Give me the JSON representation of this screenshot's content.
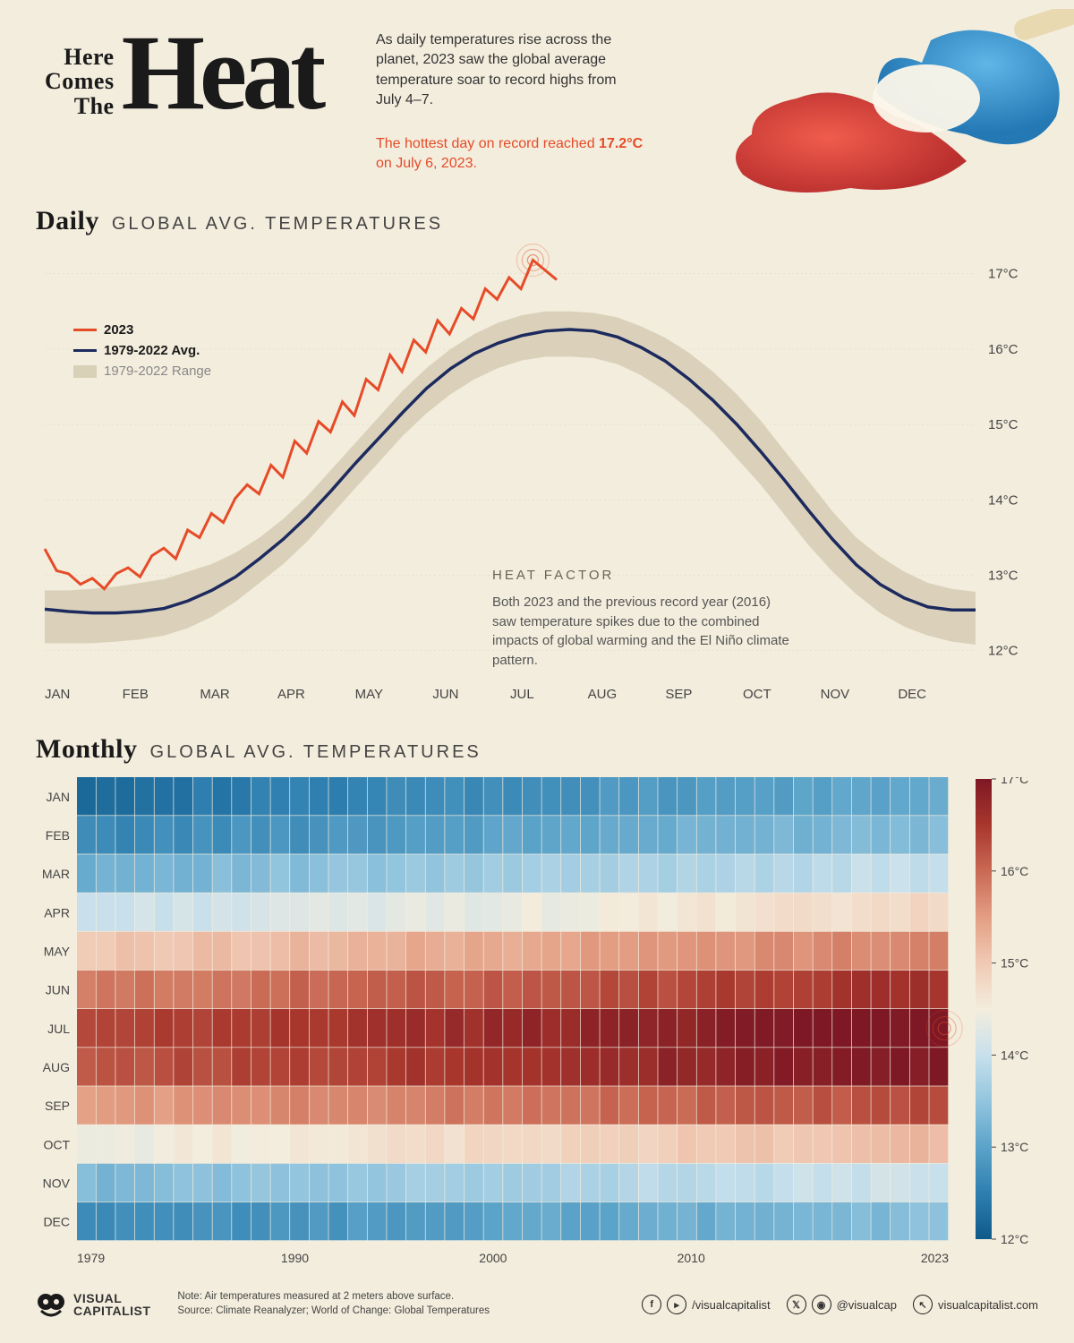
{
  "colors": {
    "bg": "#f3eddd",
    "text": "#1a1a1a",
    "accent_red": "#e64b28",
    "line_2023": "#e64b28",
    "line_avg": "#1c2a5e",
    "range_fill": "#d9d0b8",
    "grid": "#b8b09a",
    "axis_text": "#444444",
    "heat_scale": [
      "#0e5a8a",
      "#2e7fb0",
      "#5ba3c9",
      "#93c5de",
      "#c8e0ec",
      "#f3eddd",
      "#f0c9b4",
      "#e39e83",
      "#c96954",
      "#a8362d",
      "#7d1824"
    ]
  },
  "header": {
    "title_small": "Here\nComes\nThe",
    "title_big": "Heat",
    "intro": "As daily temperatures rise across the planet, 2023 saw the global average temperature soar to record highs from July 4–7.",
    "callout_pre": "The hottest day on record reached ",
    "callout_bold": "17.2°C",
    "callout_post": " on July 6, 2023."
  },
  "daily": {
    "title_bold": "Daily",
    "title_thin": "GLOBAL AVG. TEMPERATURES",
    "legend": {
      "l2023": "2023",
      "lavg": "1979-2022 Avg.",
      "lrange": "1979-2022 Range"
    },
    "annotation": {
      "title": "HEAT FACTOR",
      "body": "Both 2023 and the previous record year (2016) saw temperature spikes due to the combined impacts of global warming and the El Niño climate pattern."
    },
    "x_labels": [
      "JAN",
      "FEB",
      "MAR",
      "APR",
      "MAY",
      "JUN",
      "JUL",
      "AUG",
      "SEP",
      "OCT",
      "NOV",
      "DEC"
    ],
    "y": {
      "min": 11.7,
      "max": 17.4,
      "ticks": [
        12,
        13,
        14,
        15,
        16,
        17
      ],
      "suffix": "°C",
      "fontsize": 15
    },
    "range_upper": [
      12.8,
      12.8,
      12.82,
      12.85,
      12.9,
      12.95,
      13.05,
      13.15,
      13.3,
      13.5,
      13.75,
      14.05,
      14.4,
      14.75,
      15.1,
      15.45,
      15.75,
      16.0,
      16.2,
      16.35,
      16.45,
      16.5,
      16.5,
      16.48,
      16.42,
      16.3,
      16.15,
      15.95,
      15.7,
      15.4,
      15.05,
      14.65,
      14.25,
      13.85,
      13.5,
      13.25,
      13.05,
      12.9,
      12.82,
      12.78
    ],
    "range_lower": [
      12.1,
      12.1,
      12.1,
      12.12,
      12.15,
      12.2,
      12.3,
      12.45,
      12.65,
      12.9,
      13.15,
      13.45,
      13.8,
      14.15,
      14.5,
      14.85,
      15.15,
      15.4,
      15.6,
      15.75,
      15.85,
      15.9,
      15.9,
      15.88,
      15.8,
      15.65,
      15.45,
      15.2,
      14.9,
      14.55,
      14.2,
      13.8,
      13.4,
      13.05,
      12.75,
      12.5,
      12.32,
      12.2,
      12.12,
      12.08
    ],
    "avg": [
      12.55,
      12.52,
      12.5,
      12.5,
      12.52,
      12.56,
      12.66,
      12.8,
      12.98,
      13.22,
      13.48,
      13.78,
      14.12,
      14.48,
      14.82,
      15.16,
      15.48,
      15.74,
      15.94,
      16.08,
      16.18,
      16.24,
      16.26,
      16.24,
      16.16,
      16.02,
      15.84,
      15.6,
      15.32,
      15.0,
      14.64,
      14.26,
      13.86,
      13.48,
      13.14,
      12.88,
      12.7,
      12.58,
      12.54,
      12.54
    ],
    "y2023_len": 22,
    "y2023": [
      13.35,
      13.06,
      13.02,
      12.88,
      12.96,
      12.82,
      13.02,
      13.1,
      12.98,
      13.26,
      13.36,
      13.22,
      13.6,
      13.5,
      13.82,
      13.7,
      14.02,
      14.2,
      14.08,
      14.46,
      14.3,
      14.78,
      14.62,
      15.04,
      14.9,
      15.3,
      15.12,
      15.6,
      15.46,
      15.92,
      15.7,
      16.12,
      15.96,
      16.38,
      16.2,
      16.54,
      16.4,
      16.8,
      16.66,
      16.95,
      16.8,
      17.18,
      17.05,
      16.92
    ]
  },
  "monthly": {
    "title_bold": "Monthly",
    "title_thin": "GLOBAL AVG. TEMPERATURES",
    "rows": [
      "JAN",
      "FEB",
      "MAR",
      "APR",
      "MAY",
      "JUN",
      "JUL",
      "AUG",
      "SEP",
      "OCT",
      "NOV",
      "DEC"
    ],
    "x_start": 1979,
    "x_end": 2023,
    "x_ticks": [
      1979,
      1990,
      2000,
      2010,
      2023
    ],
    "color_ticks": [
      12,
      13,
      14,
      15,
      16,
      17
    ],
    "color_tick_suffix": "°C",
    "base": [
      12.3,
      12.6,
      13.2,
      14.0,
      15.0,
      15.8,
      16.3,
      16.2,
      15.5,
      14.4,
      13.3,
      12.6
    ],
    "trend_per_year": 0.018,
    "noise_amp": 0.1,
    "value_min": 12.0,
    "value_max": 17.0,
    "jul2023": 17.0
  },
  "footer": {
    "brand": "VISUAL\nCAPITALIST",
    "note1": "Note:  Air temperatures measured at 2 meters above surface.",
    "note2": "Source: Climate Reanalyzer; World of Change: Global Temperatures",
    "social1": "/visualcapitalist",
    "social2": "@visualcap",
    "social3": "visualcapitalist.com"
  }
}
